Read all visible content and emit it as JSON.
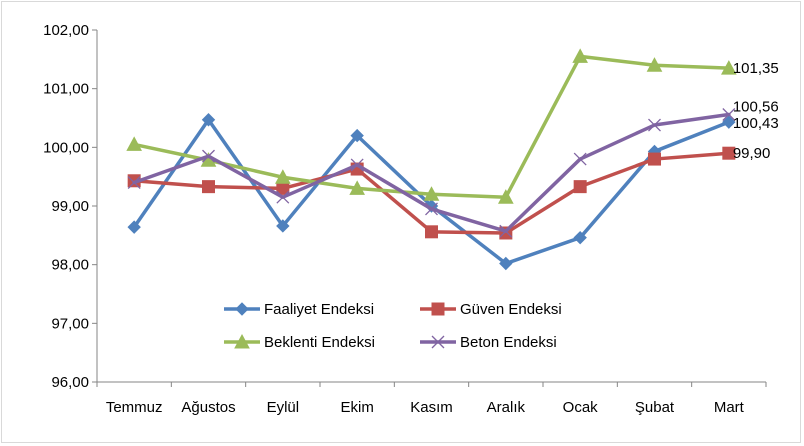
{
  "chart_data": {
    "type": "line",
    "categories": [
      "Temmuz",
      "Ağustos",
      "Eylül",
      "Ekim",
      "Kasım",
      "Aralık",
      "Ocak",
      "Şubat",
      "Mart"
    ],
    "ylim": [
      96.0,
      102.0
    ],
    "yticks": [
      96.0,
      97.0,
      98.0,
      99.0,
      100.0,
      101.0,
      102.0
    ],
    "ytick_labels": [
      "96,00",
      "97,00",
      "98,00",
      "99,00",
      "100,00",
      "101,00",
      "102,00"
    ],
    "grid": false,
    "legend_position": "bottom-center",
    "series": [
      {
        "name": "Faaliyet Endeksi",
        "color": "#4f81bd",
        "marker": "diamond",
        "values": [
          98.64,
          100.47,
          98.66,
          100.2,
          99.0,
          98.02,
          98.46,
          99.93,
          100.43
        ],
        "end_label": "100,43"
      },
      {
        "name": "Güven Endeksi",
        "color": "#c0504d",
        "marker": "square",
        "values": [
          99.43,
          99.33,
          99.3,
          99.63,
          98.56,
          98.54,
          99.33,
          99.8,
          99.9
        ],
        "end_label": "99,90"
      },
      {
        "name": "Beklenti Endeksi",
        "color": "#9bbb59",
        "marker": "triangle",
        "values": [
          100.05,
          99.78,
          99.49,
          99.3,
          99.2,
          99.15,
          101.55,
          101.4,
          101.35
        ],
        "end_label": "101,35"
      },
      {
        "name": "Beton Endeksi",
        "color": "#8064a2",
        "marker": "x",
        "values": [
          99.4,
          99.85,
          99.15,
          99.7,
          98.95,
          98.57,
          99.8,
          100.38,
          100.56
        ],
        "end_label": "100,56"
      }
    ]
  }
}
